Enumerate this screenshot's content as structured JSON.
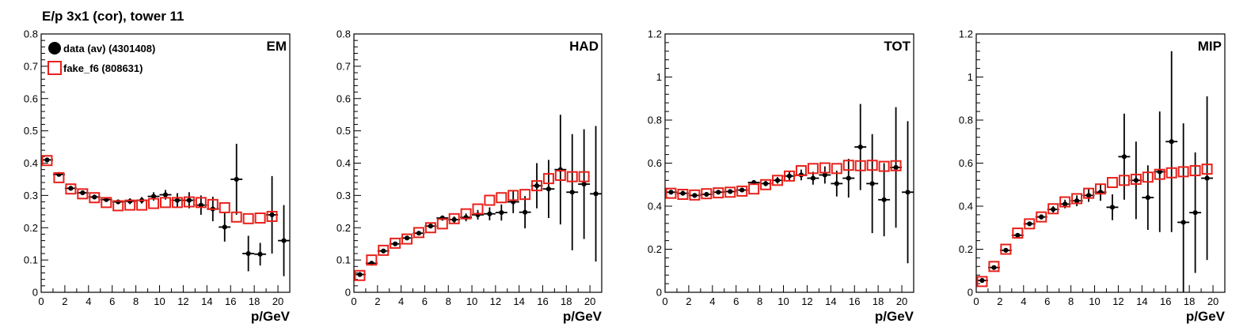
{
  "title": "E/p 3x1 (cor), tower 11",
  "colors": {
    "data": "#000000",
    "fake": "#e8211b"
  },
  "chart_data": [
    {
      "type": "scatter",
      "panel_label": "EM",
      "xlabel": "p/GeV",
      "ylabel": "",
      "xlim": [
        0,
        21
      ],
      "ylim": [
        0,
        0.8
      ],
      "xticks": [
        "0",
        "2",
        "4",
        "6",
        "8",
        "10",
        "12",
        "14",
        "16",
        "18",
        "20"
      ],
      "yticks": [
        "0",
        "0.1",
        "0.2",
        "0.3",
        "0.4",
        "0.5",
        "0.6",
        "0.7",
        "0.8"
      ],
      "legend": [
        {
          "label": "data (av) (4301408)",
          "marker": "filled-circle"
        },
        {
          "label": "fake_f6 (808631)",
          "marker": "open-square"
        }
      ],
      "series": [
        {
          "name": "data (av) (4301408)",
          "x": [
            0.5,
            1.5,
            2.5,
            3.5,
            4.5,
            5.5,
            6.5,
            7.5,
            8.5,
            9.5,
            10.5,
            11.5,
            12.5,
            13.5,
            14.5,
            15.5,
            16.5,
            17.5,
            18.5,
            19.5,
            20.5
          ],
          "y": [
            0.41,
            0.365,
            0.322,
            0.308,
            0.295,
            0.287,
            0.28,
            0.282,
            0.285,
            0.297,
            0.302,
            0.285,
            0.285,
            0.27,
            0.258,
            0.202,
            0.35,
            0.12,
            0.118,
            0.24,
            0.16
          ],
          "err": [
            0.005,
            0.005,
            0.005,
            0.005,
            0.005,
            0.006,
            0.007,
            0.009,
            0.01,
            0.013,
            0.015,
            0.022,
            0.025,
            0.03,
            0.038,
            0.045,
            0.11,
            0.055,
            0.035,
            0.12,
            0.11
          ]
        },
        {
          "name": "fake_f6 (808631)",
          "x": [
            0.5,
            1.5,
            2.5,
            3.5,
            4.5,
            5.5,
            6.5,
            7.5,
            8.5,
            9.5,
            10.5,
            11.5,
            12.5,
            13.5,
            14.5,
            15.5,
            16.5,
            17.5,
            18.5,
            19.5
          ],
          "y": [
            0.408,
            0.355,
            0.32,
            0.305,
            0.293,
            0.278,
            0.268,
            0.27,
            0.27,
            0.275,
            0.278,
            0.278,
            0.28,
            0.278,
            0.272,
            0.262,
            0.233,
            0.228,
            0.23,
            0.235
          ]
        }
      ]
    },
    {
      "type": "scatter",
      "panel_label": "HAD",
      "xlabel": "p/GeV",
      "ylabel": "",
      "xlim": [
        0,
        21
      ],
      "ylim": [
        0,
        0.8
      ],
      "xticks": [
        "0",
        "2",
        "4",
        "6",
        "8",
        "10",
        "12",
        "14",
        "16",
        "18",
        "20"
      ],
      "yticks": [
        "0",
        "0.1",
        "0.2",
        "0.3",
        "0.4",
        "0.5",
        "0.6",
        "0.7",
        "0.8"
      ],
      "series": [
        {
          "name": "data (av) (4301408)",
          "x": [
            0.5,
            1.5,
            2.5,
            3.5,
            4.5,
            5.5,
            6.5,
            7.5,
            8.5,
            9.5,
            10.5,
            11.5,
            12.5,
            13.5,
            14.5,
            15.5,
            16.5,
            17.5,
            18.5,
            19.5,
            20.5
          ],
          "y": [
            0.055,
            0.09,
            0.128,
            0.15,
            0.168,
            0.183,
            0.205,
            0.23,
            0.225,
            0.232,
            0.24,
            0.243,
            0.247,
            0.28,
            0.248,
            0.33,
            0.32,
            0.38,
            0.31,
            0.335,
            0.305
          ],
          "err": [
            0.004,
            0.004,
            0.004,
            0.005,
            0.005,
            0.006,
            0.007,
            0.008,
            0.01,
            0.012,
            0.015,
            0.02,
            0.025,
            0.035,
            0.05,
            0.07,
            0.09,
            0.17,
            0.18,
            0.17,
            0.21
          ]
        },
        {
          "name": "fake_f6 (808631)",
          "x": [
            0.5,
            1.5,
            2.5,
            3.5,
            4.5,
            5.5,
            6.5,
            7.5,
            8.5,
            9.5,
            10.5,
            11.5,
            12.5,
            13.5,
            14.5,
            15.5,
            16.5,
            17.5,
            18.5,
            19.5
          ],
          "y": [
            0.052,
            0.1,
            0.13,
            0.152,
            0.165,
            0.185,
            0.2,
            0.212,
            0.228,
            0.243,
            0.258,
            0.285,
            0.293,
            0.3,
            0.303,
            0.33,
            0.352,
            0.362,
            0.358,
            0.358
          ]
        }
      ]
    },
    {
      "type": "scatter",
      "panel_label": "TOT",
      "xlabel": "p/GeV",
      "ylabel": "",
      "xlim": [
        0,
        21
      ],
      "ylim": [
        0,
        1.2
      ],
      "xticks": [
        "0",
        "2",
        "4",
        "6",
        "8",
        "10",
        "12",
        "14",
        "16",
        "18",
        "20"
      ],
      "yticks": [
        "0",
        "0.2",
        "0.4",
        "0.6",
        "0.8",
        "1",
        "1.2"
      ],
      "series": [
        {
          "name": "data (av) (4301408)",
          "x": [
            0.5,
            1.5,
            2.5,
            3.5,
            4.5,
            5.5,
            6.5,
            7.5,
            8.5,
            9.5,
            10.5,
            11.5,
            12.5,
            13.5,
            14.5,
            15.5,
            16.5,
            17.5,
            18.5,
            19.5,
            20.5
          ],
          "y": [
            0.465,
            0.46,
            0.45,
            0.455,
            0.465,
            0.468,
            0.475,
            0.51,
            0.505,
            0.52,
            0.54,
            0.545,
            0.53,
            0.545,
            0.505,
            0.53,
            0.675,
            0.505,
            0.43,
            0.58,
            0.465
          ],
          "err": [
            0.005,
            0.005,
            0.005,
            0.005,
            0.006,
            0.007,
            0.008,
            0.01,
            0.012,
            0.015,
            0.02,
            0.025,
            0.03,
            0.04,
            0.06,
            0.09,
            0.2,
            0.23,
            0.17,
            0.28,
            0.33
          ]
        },
        {
          "name": "fake_f6 (808631)",
          "x": [
            0.5,
            1.5,
            2.5,
            3.5,
            4.5,
            5.5,
            6.5,
            7.5,
            8.5,
            9.5,
            10.5,
            11.5,
            12.5,
            13.5,
            14.5,
            15.5,
            16.5,
            17.5,
            18.5,
            19.5
          ],
          "y": [
            0.46,
            0.455,
            0.452,
            0.458,
            0.462,
            0.465,
            0.47,
            0.48,
            0.5,
            0.52,
            0.54,
            0.565,
            0.575,
            0.578,
            0.575,
            0.59,
            0.588,
            0.59,
            0.585,
            0.588
          ]
        }
      ]
    },
    {
      "type": "scatter",
      "panel_label": "MIP",
      "xlabel": "p/GeV",
      "ylabel": "",
      "xlim": [
        0,
        21
      ],
      "ylim": [
        0,
        1.2
      ],
      "xticks": [
        "0",
        "2",
        "4",
        "6",
        "8",
        "10",
        "12",
        "14",
        "16",
        "18",
        "20"
      ],
      "yticks": [
        "0",
        "0.2",
        "0.4",
        "0.6",
        "0.8",
        "1",
        "1.2"
      ],
      "series": [
        {
          "name": "data (av) (4301408)",
          "x": [
            0.5,
            1.5,
            2.5,
            3.5,
            4.5,
            5.5,
            6.5,
            7.5,
            8.5,
            9.5,
            10.5,
            11.5,
            12.5,
            13.5,
            14.5,
            15.5,
            16.5,
            17.5,
            18.5,
            19.5
          ],
          "y": [
            0.055,
            0.115,
            0.195,
            0.265,
            0.318,
            0.35,
            0.385,
            0.41,
            0.425,
            0.45,
            0.465,
            0.395,
            0.63,
            0.52,
            0.44,
            0.56,
            0.7,
            0.325,
            0.37,
            0.53
          ],
          "err": [
            0.005,
            0.006,
            0.007,
            0.008,
            0.01,
            0.012,
            0.015,
            0.02,
            0.025,
            0.03,
            0.04,
            0.06,
            0.2,
            0.18,
            0.15,
            0.28,
            0.42,
            0.46,
            0.28,
            0.38
          ]
        },
        {
          "name": "fake_f6 (808631)",
          "x": [
            0.5,
            1.5,
            2.5,
            3.5,
            4.5,
            5.5,
            6.5,
            7.5,
            8.5,
            9.5,
            10.5,
            11.5,
            12.5,
            13.5,
            14.5,
            15.5,
            16.5,
            17.5,
            18.5,
            19.5
          ],
          "y": [
            0.05,
            0.12,
            0.2,
            0.275,
            0.318,
            0.35,
            0.388,
            0.42,
            0.435,
            0.46,
            0.48,
            0.51,
            0.52,
            0.525,
            0.535,
            0.548,
            0.555,
            0.56,
            0.565,
            0.572
          ]
        }
      ]
    }
  ]
}
